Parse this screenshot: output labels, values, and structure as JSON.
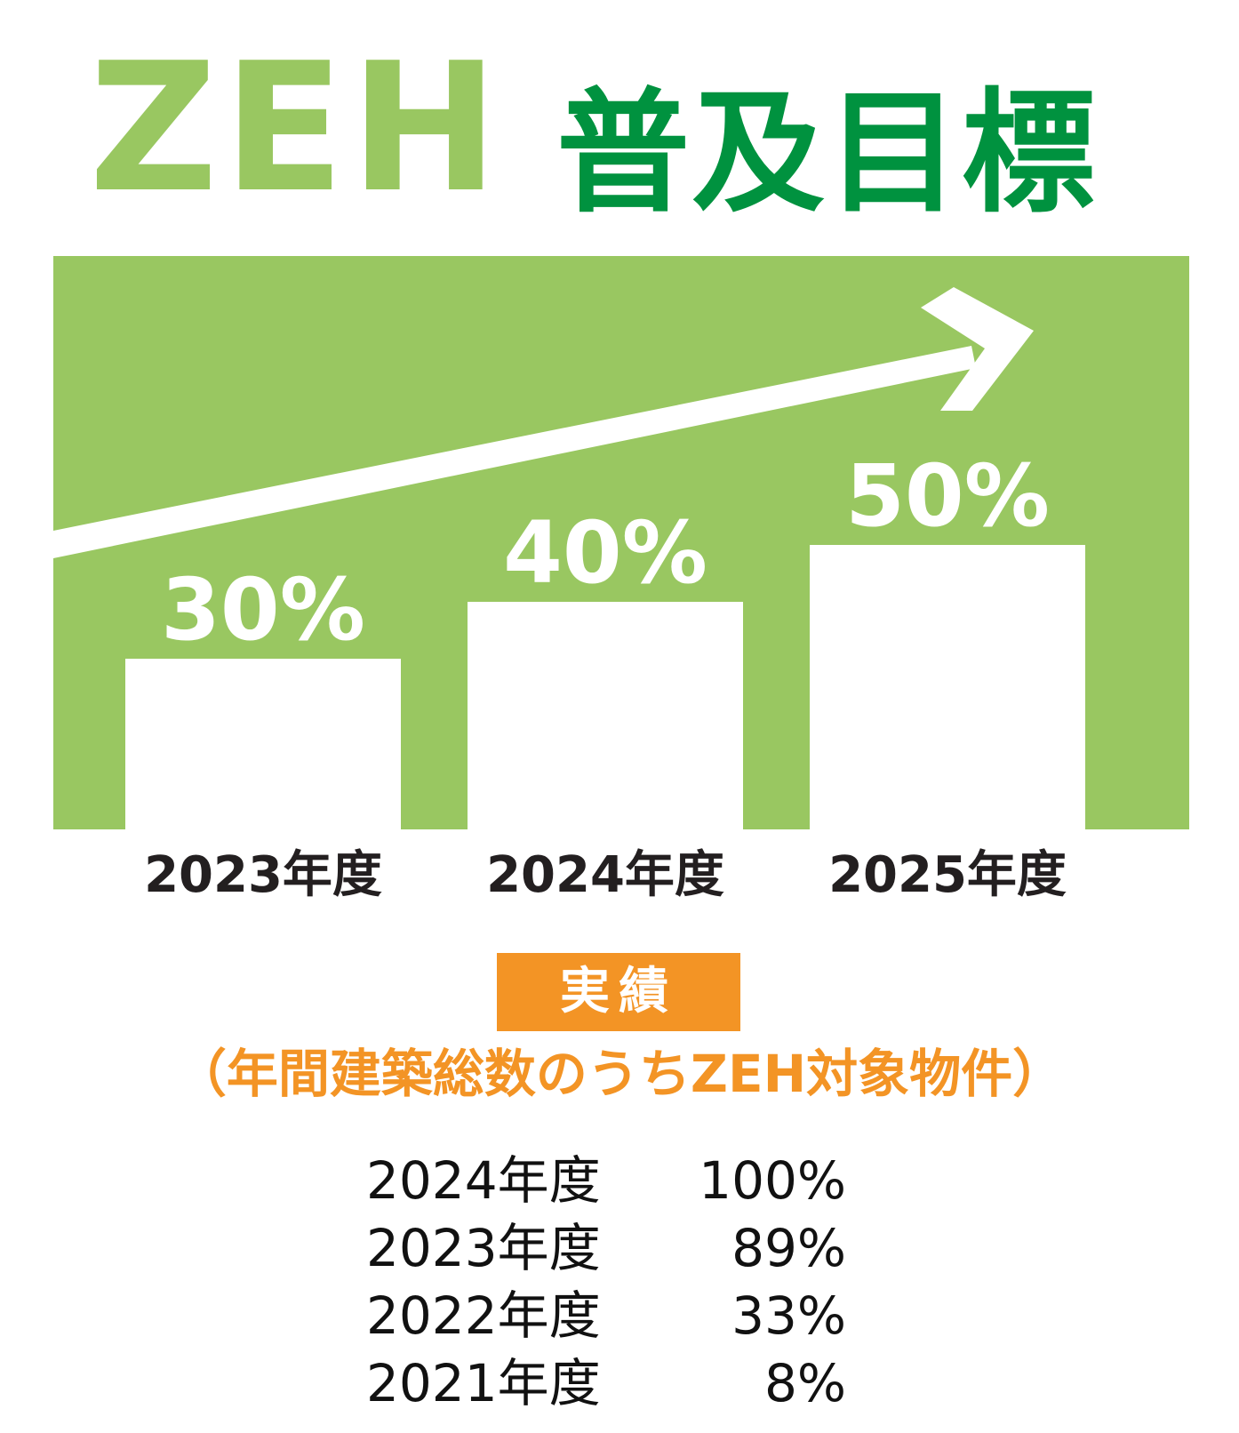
{
  "title": {
    "main": "ZEH",
    "sub": "普及目標"
  },
  "colors": {
    "light_green": "#99c761",
    "dark_green": "#00923f",
    "orange": "#f39425",
    "bar": "#ffffff",
    "label": "#231f20"
  },
  "chart_data": {
    "type": "bar",
    "categories": [
      "2023年度",
      "2024年度",
      "2025年度"
    ],
    "values": [
      30,
      40,
      50
    ],
    "value_labels": [
      "30%",
      "40%",
      "50%"
    ],
    "unit": "%",
    "trend_arrow": true,
    "title": "普及目標"
  },
  "results": {
    "badge": "実績",
    "subtitle": "（年間建築総数のうちZEH対象物件）",
    "rows": [
      {
        "year": "2024年度",
        "value": "100%"
      },
      {
        "year": "2023年度",
        "value": "89%"
      },
      {
        "year": "2022年度",
        "value": "33%"
      },
      {
        "year": "2021年度",
        "value": "8%"
      }
    ]
  }
}
